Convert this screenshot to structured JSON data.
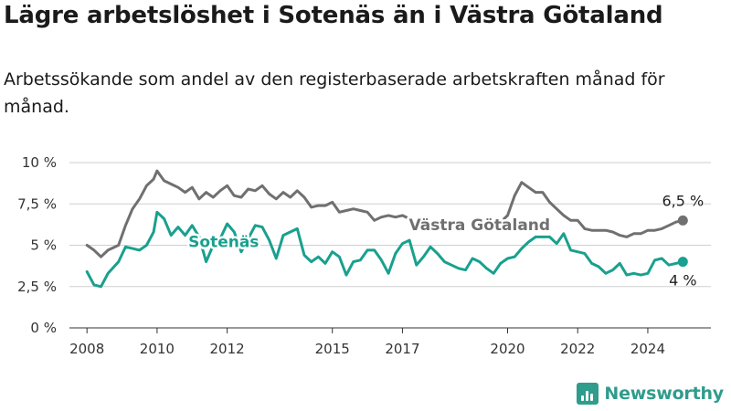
{
  "header": {
    "title": "Lägre arbetslöshet i Sotenäs än i Västra Götaland",
    "subtitle": "Arbetssökande som andel av den registerbaserade arbetskraften månad för månad."
  },
  "brand": {
    "name": "Newsworthy",
    "icon": "bar-chart-icon",
    "color": "#2f9c8c"
  },
  "chart_data": {
    "type": "line",
    "xlim": [
      2007.5,
      2025.8
    ],
    "ylim": [
      0,
      10
    ],
    "grid": true,
    "x_ticks": [
      2008,
      2010,
      2012,
      2015,
      2017,
      2020,
      2022,
      2024
    ],
    "x_tick_labels": [
      "2008",
      "2010",
      "2012",
      "2015",
      "2017",
      "2020",
      "2022",
      "2024"
    ],
    "y_ticks": [
      0,
      2.5,
      5,
      7.5,
      10
    ],
    "y_tick_labels": [
      "0 %",
      "2,5 %",
      "5 %",
      "7,5 %",
      "10 %"
    ],
    "series": [
      {
        "name": "Västra Götaland",
        "color": "#707070",
        "end_label": "6,5 %",
        "x": [
          2008.0,
          2008.2,
          2008.4,
          2008.6,
          2008.9,
          2009.1,
          2009.3,
          2009.5,
          2009.7,
          2009.9,
          2010.0,
          2010.2,
          2010.4,
          2010.6,
          2010.8,
          2011.0,
          2011.2,
          2011.4,
          2011.6,
          2011.8,
          2012.0,
          2012.2,
          2012.4,
          2012.6,
          2012.8,
          2013.0,
          2013.2,
          2013.4,
          2013.6,
          2013.8,
          2014.0,
          2014.2,
          2014.4,
          2014.6,
          2014.8,
          2015.0,
          2015.2,
          2015.4,
          2015.6,
          2015.8,
          2016.0,
          2016.2,
          2016.4,
          2016.6,
          2016.8,
          2017.0,
          2017.2,
          2019.9,
          2020.0,
          2020.2,
          2020.4,
          2020.6,
          2020.8,
          2021.0,
          2021.2,
          2021.4,
          2021.6,
          2021.8,
          2022.0,
          2022.2,
          2022.4,
          2022.6,
          2022.8,
          2023.0,
          2023.2,
          2023.4,
          2023.6,
          2023.8,
          2024.0,
          2024.2,
          2024.4,
          2024.6,
          2024.8,
          2025.0
        ],
        "y": [
          5.0,
          4.7,
          4.3,
          4.7,
          5.0,
          6.2,
          7.2,
          7.8,
          8.6,
          9.0,
          9.5,
          8.9,
          8.7,
          8.5,
          8.2,
          8.5,
          7.8,
          8.2,
          7.9,
          8.3,
          8.6,
          8.0,
          7.9,
          8.4,
          8.3,
          8.6,
          8.1,
          7.8,
          8.2,
          7.9,
          8.3,
          7.9,
          7.3,
          7.4,
          7.4,
          7.6,
          7.0,
          7.1,
          7.2,
          7.1,
          7.0,
          6.5,
          6.7,
          6.8,
          6.7,
          6.8,
          6.6,
          6.6,
          6.8,
          8.0,
          8.8,
          8.5,
          8.2,
          8.2,
          7.6,
          7.2,
          6.8,
          6.5,
          6.5,
          6.0,
          5.9,
          5.9,
          5.9,
          5.8,
          5.6,
          5.5,
          5.7,
          5.7,
          5.9,
          5.9,
          6.0,
          6.2,
          6.4,
          6.5
        ]
      },
      {
        "name": "Sotenäs",
        "color": "#19a08e",
        "end_label": "4 %",
        "x": [
          2008.0,
          2008.2,
          2008.4,
          2008.6,
          2008.9,
          2009.1,
          2009.3,
          2009.5,
          2009.7,
          2009.9,
          2010.0,
          2010.2,
          2010.4,
          2010.6,
          2010.8,
          2011.0,
          2011.2,
          2011.4,
          2011.6,
          2011.8,
          2012.0,
          2012.2,
          2012.4,
          2012.6,
          2012.8,
          2013.0,
          2013.2,
          2013.4,
          2013.6,
          2013.8,
          2014.0,
          2014.2,
          2014.4,
          2014.6,
          2014.8,
          2015.0,
          2015.2,
          2015.4,
          2015.6,
          2015.8,
          2016.0,
          2016.2,
          2016.4,
          2016.6,
          2016.8,
          2017.0,
          2017.2,
          2017.4,
          2017.6,
          2017.8,
          2018.0,
          2018.2,
          2018.4,
          2018.6,
          2018.8,
          2019.0,
          2019.2,
          2019.4,
          2019.6,
          2019.8,
          2020.0,
          2020.2,
          2020.4,
          2020.6,
          2020.8,
          2021.0,
          2021.2,
          2021.4,
          2021.6,
          2021.8,
          2022.0,
          2022.2,
          2022.4,
          2022.6,
          2022.8,
          2023.0,
          2023.2,
          2023.4,
          2023.6,
          2023.8,
          2024.0,
          2024.2,
          2024.4,
          2024.6,
          2024.8,
          2025.0
        ],
        "y": [
          3.4,
          2.6,
          2.5,
          3.3,
          4.0,
          4.9,
          4.8,
          4.7,
          5.0,
          5.8,
          7.0,
          6.6,
          5.6,
          6.1,
          5.6,
          6.2,
          5.5,
          4.0,
          5.0,
          5.4,
          6.3,
          5.8,
          4.6,
          5.4,
          6.2,
          6.1,
          5.3,
          4.2,
          5.6,
          5.8,
          6.0,
          4.4,
          4.0,
          4.3,
          3.9,
          4.6,
          4.3,
          3.2,
          4.0,
          4.1,
          4.7,
          4.7,
          4.1,
          3.3,
          4.5,
          5.1,
          5.3,
          3.8,
          4.3,
          4.9,
          4.5,
          4.0,
          3.8,
          3.6,
          3.5,
          4.2,
          4.0,
          3.6,
          3.3,
          3.9,
          4.2,
          4.3,
          4.8,
          5.2,
          5.5,
          5.5,
          5.5,
          5.1,
          5.7,
          4.7,
          4.6,
          4.5,
          3.9,
          3.7,
          3.3,
          3.5,
          3.9,
          3.2,
          3.3,
          3.2,
          3.3,
          4.1,
          4.2,
          3.8,
          3.9,
          4.0
        ]
      }
    ]
  }
}
